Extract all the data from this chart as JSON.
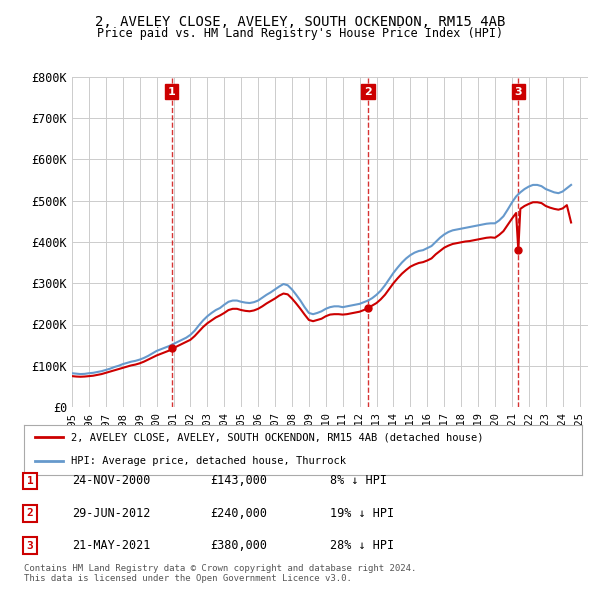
{
  "title": "2, AVELEY CLOSE, AVELEY, SOUTH OCKENDON, RM15 4AB",
  "subtitle": "Price paid vs. HM Land Registry's House Price Index (HPI)",
  "ylabel": "",
  "xlabel": "",
  "ylim": [
    0,
    800000
  ],
  "yticks": [
    0,
    100000,
    200000,
    300000,
    400000,
    500000,
    600000,
    700000,
    800000
  ],
  "ytick_labels": [
    "£0",
    "£100K",
    "£200K",
    "£300K",
    "£400K",
    "£500K",
    "£600K",
    "£700K",
    "£800K"
  ],
  "xlim_start": 1995.0,
  "xlim_end": 2025.5,
  "background_color": "#ffffff",
  "grid_color": "#cccccc",
  "red_line_color": "#cc0000",
  "blue_line_color": "#6699cc",
  "vline_color": "#cc0000",
  "sale_points": [
    {
      "year": 2000.9,
      "price": 143000,
      "label": "1",
      "date": "24-NOV-2000",
      "price_str": "£143,000",
      "pct": "8% ↓ HPI"
    },
    {
      "year": 2012.5,
      "price": 240000,
      "label": "2",
      "date": "29-JUN-2012",
      "price_str": "£240,000",
      "pct": "19% ↓ HPI"
    },
    {
      "year": 2021.38,
      "price": 380000,
      "label": "3",
      "date": "21-MAY-2021",
      "price_str": "£380,000",
      "pct": "28% ↓ HPI"
    }
  ],
  "legend_red": "2, AVELEY CLOSE, AVELEY, SOUTH OCKENDON, RM15 4AB (detached house)",
  "legend_blue": "HPI: Average price, detached house, Thurrock",
  "footer": "Contains HM Land Registry data © Crown copyright and database right 2024.\nThis data is licensed under the Open Government Licence v3.0.",
  "hpi_data": {
    "years": [
      1995.0,
      1995.25,
      1995.5,
      1995.75,
      1996.0,
      1996.25,
      1996.5,
      1996.75,
      1997.0,
      1997.25,
      1997.5,
      1997.75,
      1998.0,
      1998.25,
      1998.5,
      1998.75,
      1999.0,
      1999.25,
      1999.5,
      1999.75,
      2000.0,
      2000.25,
      2000.5,
      2000.75,
      2001.0,
      2001.25,
      2001.5,
      2001.75,
      2002.0,
      2002.25,
      2002.5,
      2002.75,
      2003.0,
      2003.25,
      2003.5,
      2003.75,
      2004.0,
      2004.25,
      2004.5,
      2004.75,
      2005.0,
      2005.25,
      2005.5,
      2005.75,
      2006.0,
      2006.25,
      2006.5,
      2006.75,
      2007.0,
      2007.25,
      2007.5,
      2007.75,
      2008.0,
      2008.25,
      2008.5,
      2008.75,
      2009.0,
      2009.25,
      2009.5,
      2009.75,
      2010.0,
      2010.25,
      2010.5,
      2010.75,
      2011.0,
      2011.25,
      2011.5,
      2011.75,
      2012.0,
      2012.25,
      2012.5,
      2012.75,
      2013.0,
      2013.25,
      2013.5,
      2013.75,
      2014.0,
      2014.25,
      2014.5,
      2014.75,
      2015.0,
      2015.25,
      2015.5,
      2015.75,
      2016.0,
      2016.25,
      2016.5,
      2016.75,
      2017.0,
      2017.25,
      2017.5,
      2017.75,
      2018.0,
      2018.25,
      2018.5,
      2018.75,
      2019.0,
      2019.25,
      2019.5,
      2019.75,
      2020.0,
      2020.25,
      2020.5,
      2020.75,
      2021.0,
      2021.25,
      2021.5,
      2021.75,
      2022.0,
      2022.25,
      2022.5,
      2022.75,
      2023.0,
      2023.25,
      2023.5,
      2023.75,
      2024.0,
      2024.25,
      2024.5
    ],
    "values": [
      82000,
      81000,
      80000,
      80500,
      82000,
      83000,
      85000,
      87000,
      90000,
      93000,
      97000,
      100000,
      104000,
      107000,
      110000,
      112000,
      115000,
      119000,
      124000,
      130000,
      136000,
      140000,
      144000,
      148000,
      153000,
      158000,
      163000,
      168000,
      175000,
      185000,
      198000,
      210000,
      220000,
      228000,
      235000,
      240000,
      248000,
      255000,
      258000,
      258000,
      255000,
      253000,
      252000,
      254000,
      258000,
      265000,
      272000,
      278000,
      285000,
      292000,
      298000,
      295000,
      285000,
      272000,
      258000,
      242000,
      228000,
      225000,
      228000,
      232000,
      238000,
      242000,
      244000,
      244000,
      242000,
      244000,
      246000,
      248000,
      250000,
      254000,
      258000,
      264000,
      272000,
      282000,
      295000,
      310000,
      325000,
      338000,
      350000,
      360000,
      368000,
      374000,
      378000,
      380000,
      385000,
      390000,
      400000,
      410000,
      418000,
      424000,
      428000,
      430000,
      432000,
      434000,
      436000,
      438000,
      440000,
      442000,
      444000,
      445000,
      445000,
      452000,
      462000,
      478000,
      495000,
      510000,
      520000,
      528000,
      534000,
      538000,
      538000,
      535000,
      528000,
      524000,
      520000,
      518000,
      522000,
      530000,
      538000
    ]
  },
  "price_data": {
    "years": [
      1995.0,
      1995.25,
      1995.5,
      1995.75,
      1996.0,
      1996.25,
      1996.5,
      1996.75,
      1997.0,
      1997.25,
      1997.5,
      1997.75,
      1998.0,
      1998.25,
      1998.5,
      1998.75,
      1999.0,
      1999.25,
      1999.5,
      1999.75,
      2000.0,
      2000.25,
      2000.5,
      2000.75,
      2000.9,
      2001.0,
      2001.25,
      2001.5,
      2001.75,
      2002.0,
      2002.25,
      2002.5,
      2002.75,
      2003.0,
      2003.25,
      2003.5,
      2003.75,
      2004.0,
      2004.25,
      2004.5,
      2004.75,
      2005.0,
      2005.25,
      2005.5,
      2005.75,
      2006.0,
      2006.25,
      2006.5,
      2006.75,
      2007.0,
      2007.25,
      2007.5,
      2007.75,
      2008.0,
      2008.25,
      2008.5,
      2008.75,
      2009.0,
      2009.25,
      2009.5,
      2009.75,
      2010.0,
      2010.25,
      2010.5,
      2010.75,
      2011.0,
      2011.25,
      2011.5,
      2011.75,
      2012.0,
      2012.25,
      2012.5,
      2012.75,
      2013.0,
      2013.25,
      2013.5,
      2013.75,
      2014.0,
      2014.25,
      2014.5,
      2014.75,
      2015.0,
      2015.25,
      2015.5,
      2015.75,
      2016.0,
      2016.25,
      2016.5,
      2016.75,
      2017.0,
      2017.25,
      2017.5,
      2017.75,
      2018.0,
      2018.25,
      2018.5,
      2018.75,
      2019.0,
      2019.25,
      2019.5,
      2019.75,
      2020.0,
      2020.25,
      2020.5,
      2020.75,
      2021.0,
      2021.25,
      2021.38,
      2021.5,
      2021.75,
      2022.0,
      2022.25,
      2022.5,
      2022.75,
      2023.0,
      2023.25,
      2023.5,
      2023.75,
      2024.0,
      2024.25,
      2024.5
    ],
    "values": [
      75000,
      74000,
      73500,
      74000,
      75000,
      76000,
      78000,
      80000,
      83000,
      86000,
      89000,
      92000,
      95000,
      98000,
      101000,
      103000,
      106000,
      110000,
      115000,
      120000,
      125000,
      129000,
      133000,
      137000,
      143000,
      143000,
      148000,
      153000,
      158000,
      163000,
      172000,
      183000,
      194000,
      203000,
      210000,
      217000,
      222000,
      228000,
      235000,
      238000,
      238000,
      235000,
      233000,
      232000,
      234000,
      238000,
      244000,
      251000,
      257000,
      263000,
      270000,
      275000,
      273000,
      263000,
      251000,
      238000,
      224000,
      211000,
      208000,
      211000,
      214000,
      220000,
      224000,
      225000,
      225000,
      224000,
      225000,
      227000,
      229000,
      231000,
      235000,
      240000,
      246000,
      252000,
      261000,
      272000,
      286000,
      300000,
      312000,
      323000,
      332000,
      340000,
      345000,
      349000,
      351000,
      355000,
      360000,
      370000,
      378000,
      386000,
      391000,
      395000,
      397000,
      399000,
      401000,
      402000,
      404000,
      406000,
      408000,
      410000,
      411000,
      410000,
      417000,
      426000,
      441000,
      456000,
      470000,
      380000,
      480000,
      487000,
      492000,
      496000,
      496000,
      494000,
      487000,
      483000,
      480000,
      478000,
      481000,
      489000,
      447000
    ]
  }
}
